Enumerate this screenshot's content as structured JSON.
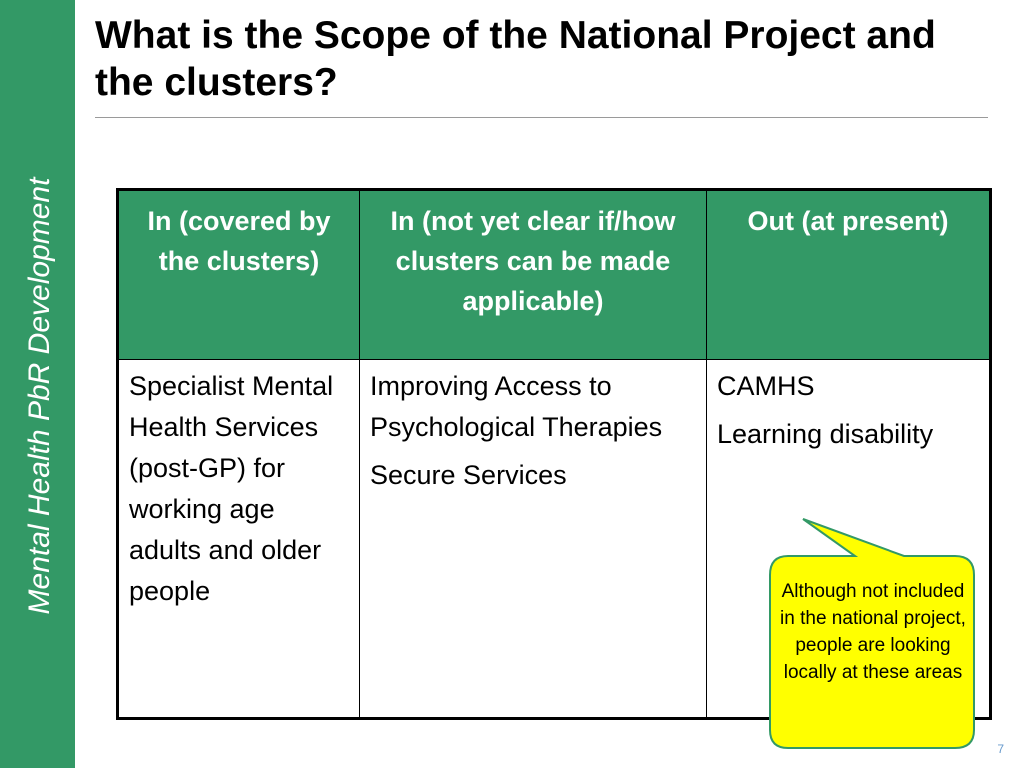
{
  "sidebar": {
    "label": "Mental Health PbR Development"
  },
  "slide": {
    "title": "What is the Scope of the National Project and the clusters?",
    "page_number": "7"
  },
  "table": {
    "headers": [
      "In (covered by the clusters)",
      "In (not yet clear if/how clusters can be made applicable)",
      "Out (at present)"
    ],
    "columns": [
      [
        "Specialist Mental Health Services (post-GP) for working age adults and older people"
      ],
      [
        "Improving Access to Psychological Therapies",
        "Secure Services"
      ],
      [
        "CAMHS",
        "Learning disability"
      ]
    ]
  },
  "callout": {
    "text": "Although not included in the national project, people are looking locally at these areas",
    "fill": "#ffff00",
    "stroke": "#339966"
  },
  "colors": {
    "accent": "#339966",
    "header_text": "#ffffff"
  }
}
